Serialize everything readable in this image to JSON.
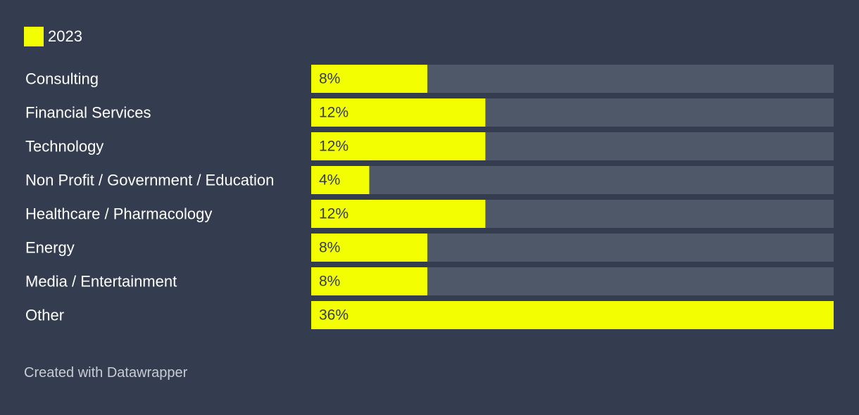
{
  "legend": {
    "label": "2023",
    "color": "#f3ff00"
  },
  "colors": {
    "background": "#333d4f",
    "bar": "#f3ff00",
    "track": "#4f5868",
    "category_text": "#ffffff",
    "value_text": "#333d4f",
    "footer_text": "#c8ccd3"
  },
  "footer": {
    "credit": "Created with Datawrapper"
  },
  "chart_data": {
    "type": "bar",
    "orientation": "horizontal",
    "title": "",
    "xlabel": "",
    "ylabel": "",
    "grid": false,
    "legend_position": "top-left",
    "xlim": [
      0,
      36
    ],
    "value_suffix": "%",
    "categories": [
      "Consulting",
      "Financial Services",
      "Technology",
      "Non Profit / Government / Education",
      "Healthcare / Pharmacology",
      "Energy",
      "Media / Entertainment",
      "Other"
    ],
    "series": [
      {
        "name": "2023",
        "values": [
          8,
          12,
          12,
          4,
          12,
          8,
          8,
          36
        ],
        "labels": [
          "8%",
          "12%",
          "12%",
          "4%",
          "12%",
          "8%",
          "8%",
          "36%"
        ]
      }
    ]
  }
}
